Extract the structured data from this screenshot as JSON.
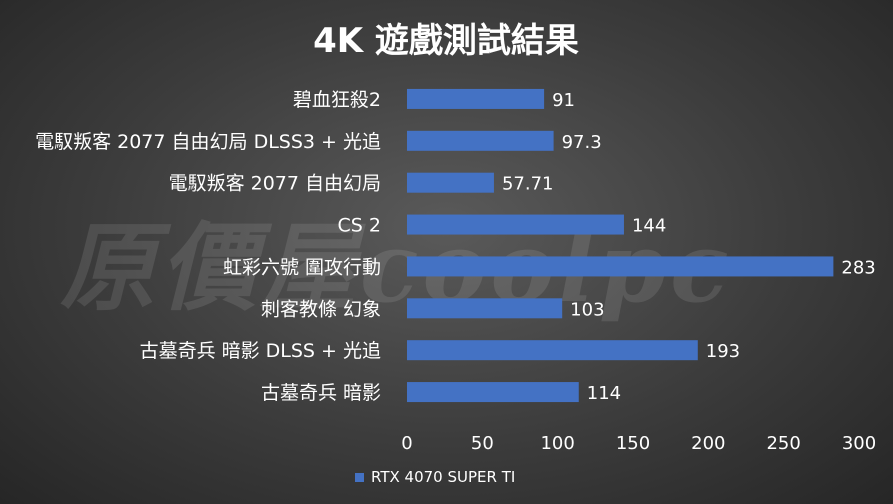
{
  "chart_data": {
    "type": "bar",
    "orientation": "horizontal",
    "title": "4K 遊戲測試結果",
    "categories": [
      "碧血狂殺2",
      "電馭叛客 2077 自由幻局 DLSS3 + 光追",
      "電馭叛客 2077 自由幻局",
      "CS 2",
      "虹彩六號 圍攻行動",
      "刺客教條 幻象",
      "古墓奇兵 暗影 DLSS + 光追",
      "古墓奇兵 暗影"
    ],
    "series": [
      {
        "name": "RTX 4070 SUPER TI",
        "values": [
          91,
          97.3,
          57.71,
          144,
          283,
          103,
          193,
          114
        ],
        "color": "#4472c4"
      }
    ],
    "xlim": [
      0,
      300
    ],
    "x_ticks": [
      0,
      50,
      100,
      150,
      200,
      250,
      300
    ],
    "grid": false,
    "legend": "bottom"
  },
  "watermark": "原價屋coolpc"
}
